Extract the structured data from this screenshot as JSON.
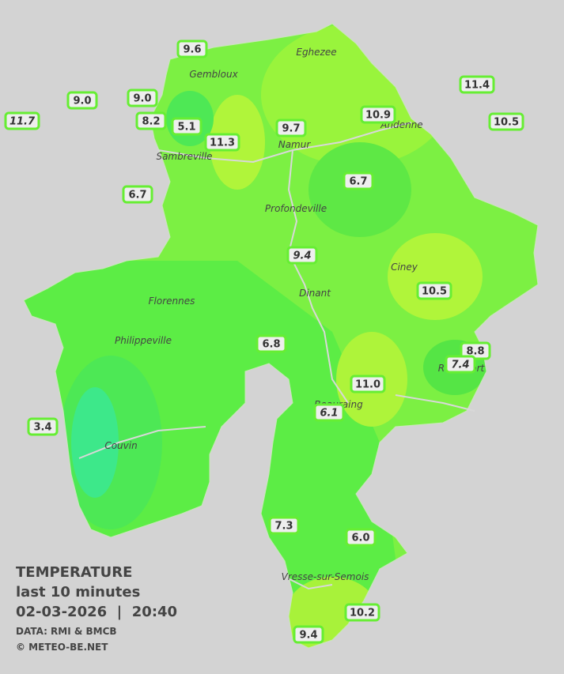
{
  "legend": {
    "title": "TEMPERATURE",
    "subtitle": "last 10 minutes",
    "datetime": "02-03-2026  |  20:40",
    "source": "DATA: RMI & BMCB",
    "credit": "© METEO-BE.NET"
  },
  "cities": [
    "Eghezee",
    "Gembloux",
    "Sambreville",
    "Namur",
    "Andenne",
    "Profondeville",
    "Ciney",
    "Florennes",
    "Dinant",
    "Philippeville",
    "Rochefort",
    "Beauraing",
    "Couvin",
    "Vresse-sur-Semois"
  ],
  "stations": [
    "9.6",
    "9.0",
    "9.0",
    "11.7",
    "8.2",
    "5.1",
    "11.3",
    "9.7",
    "10.9",
    "11.4",
    "10.5",
    "6.7",
    "6.7",
    "9.4",
    "10.5",
    "6.8",
    "8.8",
    "7.4",
    "11.0",
    "6.1",
    "3.4",
    "7.3",
    "6.0",
    "10.2",
    "9.4"
  ]
}
